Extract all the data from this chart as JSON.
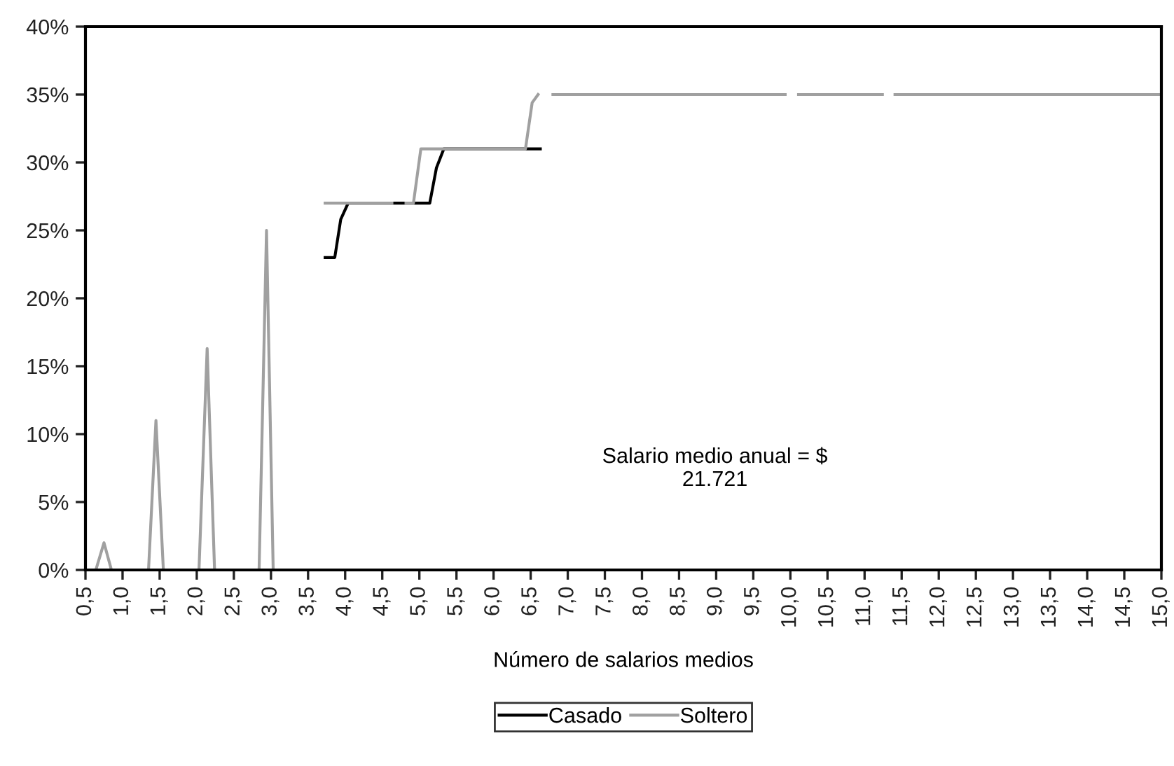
{
  "chart_data": {
    "type": "line",
    "xlabel": "Número de salarios medios",
    "xlim": [
      0.5,
      15.0
    ],
    "xticks": [
      {
        "value": 0.5,
        "label": "0,5"
      },
      {
        "value": 1.0,
        "label": "1,0"
      },
      {
        "value": 1.5,
        "label": "1,5"
      },
      {
        "value": 2.0,
        "label": "2,0"
      },
      {
        "value": 2.5,
        "label": "2,5"
      },
      {
        "value": 3.0,
        "label": "3,0"
      },
      {
        "value": 3.5,
        "label": "3,5"
      },
      {
        "value": 4.0,
        "label": "4,0"
      },
      {
        "value": 4.5,
        "label": "4,5"
      },
      {
        "value": 5.0,
        "label": "5,0"
      },
      {
        "value": 5.5,
        "label": "5,5"
      },
      {
        "value": 6.0,
        "label": "6,0"
      },
      {
        "value": 6.5,
        "label": "6,5"
      },
      {
        "value": 7.0,
        "label": "7,0"
      },
      {
        "value": 7.5,
        "label": "7,5"
      },
      {
        "value": 8.0,
        "label": "8,0"
      },
      {
        "value": 8.5,
        "label": "8,5"
      },
      {
        "value": 9.0,
        "label": "9,0"
      },
      {
        "value": 9.5,
        "label": "9,5"
      },
      {
        "value": 10.0,
        "label": "10,0"
      },
      {
        "value": 10.5,
        "label": "10,5"
      },
      {
        "value": 11.0,
        "label": "11,0"
      },
      {
        "value": 11.5,
        "label": "11,5"
      },
      {
        "value": 12.0,
        "label": "12,0"
      },
      {
        "value": 12.5,
        "label": "12,5"
      },
      {
        "value": 13.0,
        "label": "13,0"
      },
      {
        "value": 13.5,
        "label": "13,5"
      },
      {
        "value": 14.0,
        "label": "14,0"
      },
      {
        "value": 14.5,
        "label": "14,5"
      },
      {
        "value": 15.0,
        "label": "15,0"
      }
    ],
    "ylim": [
      0,
      40
    ],
    "yticks": [
      {
        "value": 0,
        "label": "0%"
      },
      {
        "value": 5,
        "label": "5%"
      },
      {
        "value": 10,
        "label": "10%"
      },
      {
        "value": 15,
        "label": "15%"
      },
      {
        "value": 20,
        "label": "20%"
      },
      {
        "value": 25,
        "label": "25%"
      },
      {
        "value": 30,
        "label": "30%"
      },
      {
        "value": 35,
        "label": "35%"
      },
      {
        "value": 40,
        "label": "40%"
      }
    ],
    "series": [
      {
        "name": "Casado",
        "color": "#000000",
        "x": [
          3.73,
          3.86,
          3.94,
          4.04,
          4.92,
          5.14,
          5.23,
          5.33,
          6.63
        ],
        "values": [
          23,
          23,
          25.8,
          27,
          27,
          27,
          29.6,
          31,
          31
        ]
      },
      {
        "name": "Soltero",
        "color": "#a0a0a0",
        "x": [
          0.64,
          0.75,
          0.85,
          1.0,
          1.35,
          1.45,
          1.55,
          1.8,
          2.03,
          2.14,
          2.24,
          2.5,
          2.84,
          2.94,
          3.03,
          3.4,
          3.73,
          4.63,
          4.7,
          4.82,
          4.92,
          5.02,
          6.43,
          6.52,
          6.6,
          6.7,
          6.8,
          9.93,
          10.0,
          10.11,
          11.24,
          11.3,
          11.41,
          15.0
        ],
        "values": [
          0,
          2,
          0,
          null,
          0,
          11,
          0,
          null,
          0,
          16.3,
          0,
          null,
          0,
          25,
          0,
          null,
          27,
          27,
          null,
          27,
          27,
          31,
          31,
          34.4,
          35,
          null,
          35,
          35,
          null,
          35,
          35,
          null,
          35,
          35
        ]
      }
    ],
    "annotations": [
      "Salario medio anual = $\n21.721"
    ],
    "legend": "bottom",
    "grid": false,
    "marker": "none",
    "line_style": "solid"
  }
}
